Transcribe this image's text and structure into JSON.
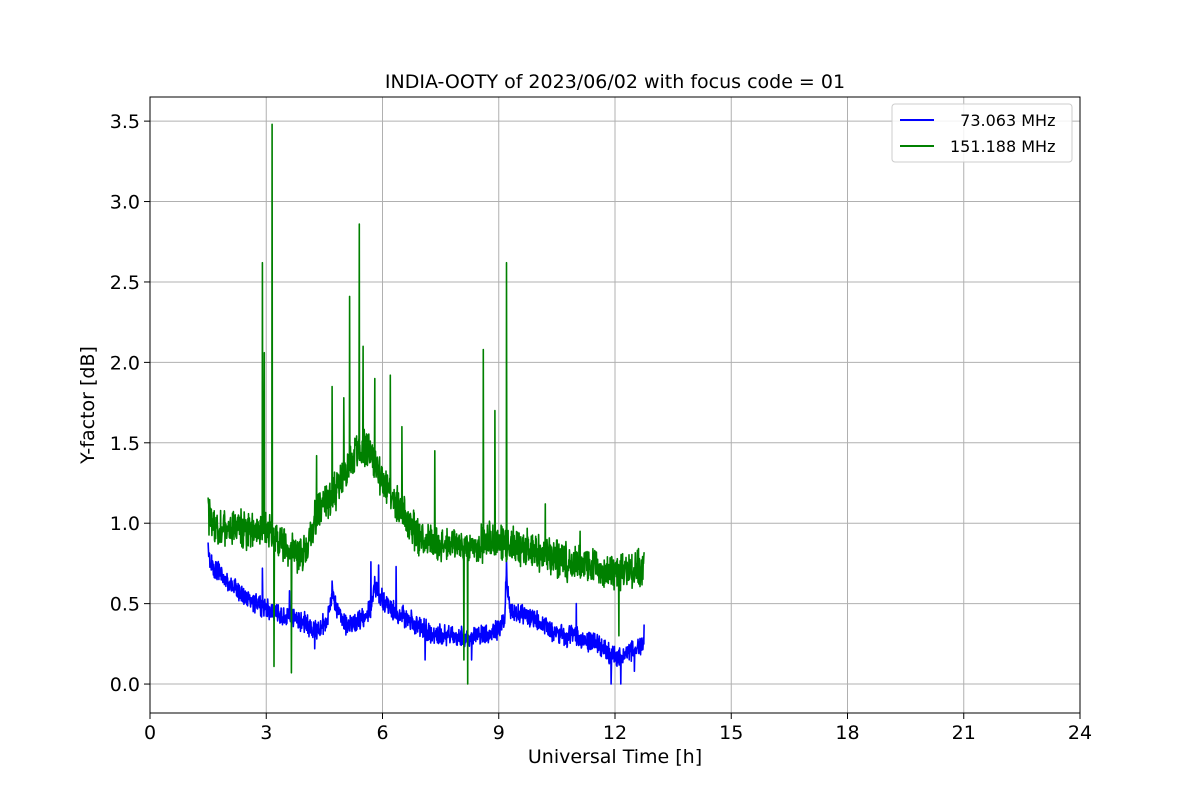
{
  "chart_data": {
    "type": "line",
    "title": "INDIA-OOTY of 2023/06/02 with focus code = 01",
    "xlabel": "Universal Time [h]",
    "ylabel": "Y-factor [dB]",
    "xlim": [
      0,
      24
    ],
    "ylim": [
      -0.18,
      3.65
    ],
    "xticks": [
      0,
      3,
      6,
      9,
      12,
      15,
      18,
      21,
      24
    ],
    "yticks": [
      0.0,
      0.5,
      1.0,
      1.5,
      2.0,
      2.5,
      3.0,
      3.5
    ],
    "xtick_labels": [
      "0",
      "3",
      "6",
      "9",
      "12",
      "15",
      "18",
      "21",
      "24"
    ],
    "ytick_labels": [
      "0.0",
      "0.5",
      "1.0",
      "1.5",
      "2.0",
      "2.5",
      "3.0",
      "3.5"
    ],
    "grid": true,
    "legend_position": "top-right",
    "series": [
      {
        "name": "  73.063 MHz",
        "color": "#0000ff",
        "x": [
          1.5,
          1.6,
          1.8,
          2.0,
          2.2,
          2.4,
          2.6,
          2.8,
          3.0,
          3.2,
          3.4,
          3.6,
          3.8,
          4.0,
          4.2,
          4.4,
          4.6,
          4.7,
          4.9,
          5.1,
          5.3,
          5.5,
          5.7,
          5.8,
          6.0,
          6.2,
          6.4,
          6.6,
          6.8,
          7.0,
          7.2,
          7.4,
          7.6,
          7.8,
          8.0,
          8.2,
          8.4,
          8.6,
          8.8,
          9.0,
          9.15,
          9.2,
          9.3,
          9.5,
          9.7,
          9.9,
          10.1,
          10.3,
          10.5,
          10.7,
          10.9,
          11.1,
          11.3,
          11.5,
          11.7,
          11.9,
          12.1,
          12.3,
          12.5,
          12.75
        ],
        "y": [
          0.8,
          0.74,
          0.69,
          0.63,
          0.6,
          0.55,
          0.52,
          0.5,
          0.47,
          0.45,
          0.43,
          0.42,
          0.4,
          0.38,
          0.33,
          0.35,
          0.41,
          0.56,
          0.43,
          0.36,
          0.38,
          0.42,
          0.48,
          0.62,
          0.52,
          0.47,
          0.44,
          0.42,
          0.38,
          0.35,
          0.32,
          0.3,
          0.31,
          0.3,
          0.29,
          0.29,
          0.3,
          0.3,
          0.32,
          0.34,
          0.4,
          0.68,
          0.45,
          0.45,
          0.43,
          0.4,
          0.38,
          0.35,
          0.32,
          0.3,
          0.3,
          0.28,
          0.27,
          0.26,
          0.22,
          0.18,
          0.17,
          0.2,
          0.22,
          0.26
        ],
        "peaks": [
          [
            1.5,
            0.88
          ],
          [
            2.9,
            0.72
          ],
          [
            3.6,
            0.58
          ],
          [
            4.7,
            0.64
          ],
          [
            5.7,
            0.76
          ],
          [
            5.9,
            0.74
          ],
          [
            6.35,
            0.73
          ],
          [
            9.2,
            0.78
          ],
          [
            11.0,
            0.5
          ],
          [
            12.75,
            0.37
          ]
        ],
        "dips": [
          [
            4.25,
            0.22
          ],
          [
            7.1,
            0.15
          ],
          [
            8.3,
            0.15
          ],
          [
            11.9,
            0.0
          ],
          [
            12.15,
            0.0
          ],
          [
            12.5,
            0.08
          ]
        ],
        "noise": 0.05
      },
      {
        "name": "151.188 MHz",
        "color": "#008000",
        "x": [
          1.5,
          1.6,
          1.8,
          2.0,
          2.2,
          2.4,
          2.6,
          2.8,
          3.0,
          3.2,
          3.4,
          3.6,
          3.8,
          3.95,
          4.1,
          4.3,
          4.5,
          4.7,
          4.9,
          5.1,
          5.3,
          5.5,
          5.7,
          5.9,
          6.1,
          6.3,
          6.5,
          6.7,
          6.9,
          7.1,
          7.3,
          7.5,
          7.7,
          7.9,
          8.1,
          8.3,
          8.5,
          8.7,
          8.9,
          9.1,
          9.3,
          9.5,
          9.7,
          9.9,
          10.1,
          10.3,
          10.5,
          10.7,
          10.9,
          11.1,
          11.3,
          11.5,
          11.7,
          11.9,
          12.1,
          12.3,
          12.5,
          12.75
        ],
        "y": [
          1.05,
          1.0,
          0.97,
          0.97,
          0.97,
          0.96,
          0.96,
          0.96,
          0.95,
          0.93,
          0.88,
          0.84,
          0.82,
          0.8,
          0.9,
          1.05,
          1.12,
          1.17,
          1.25,
          1.35,
          1.45,
          1.48,
          1.45,
          1.3,
          1.2,
          1.15,
          1.08,
          1.0,
          0.92,
          0.9,
          0.88,
          0.87,
          0.87,
          0.87,
          0.87,
          0.86,
          0.86,
          0.88,
          0.88,
          0.87,
          0.86,
          0.85,
          0.84,
          0.83,
          0.82,
          0.8,
          0.78,
          0.76,
          0.75,
          0.74,
          0.73,
          0.72,
          0.7,
          0.7,
          0.69,
          0.7,
          0.71,
          0.72
        ],
        "peaks": [
          [
            1.5,
            1.16
          ],
          [
            2.9,
            2.62
          ],
          [
            2.95,
            2.06
          ],
          [
            3.15,
            3.48
          ],
          [
            4.3,
            1.42
          ],
          [
            4.7,
            1.85
          ],
          [
            5.0,
            1.78
          ],
          [
            5.15,
            2.41
          ],
          [
            5.4,
            2.86
          ],
          [
            5.5,
            2.1
          ],
          [
            5.8,
            1.9
          ],
          [
            6.2,
            1.92
          ],
          [
            6.5,
            1.6
          ],
          [
            7.35,
            1.45
          ],
          [
            8.6,
            2.08
          ],
          [
            8.9,
            1.7
          ],
          [
            9.2,
            2.62
          ],
          [
            10.2,
            1.12
          ],
          [
            11.1,
            0.95
          ],
          [
            12.75,
            0.82
          ]
        ],
        "dips": [
          [
            3.2,
            0.11
          ],
          [
            3.65,
            0.07
          ],
          [
            8.1,
            0.15
          ],
          [
            8.2,
            0.0
          ],
          [
            12.1,
            0.3
          ]
        ],
        "noise": 0.09
      }
    ]
  }
}
